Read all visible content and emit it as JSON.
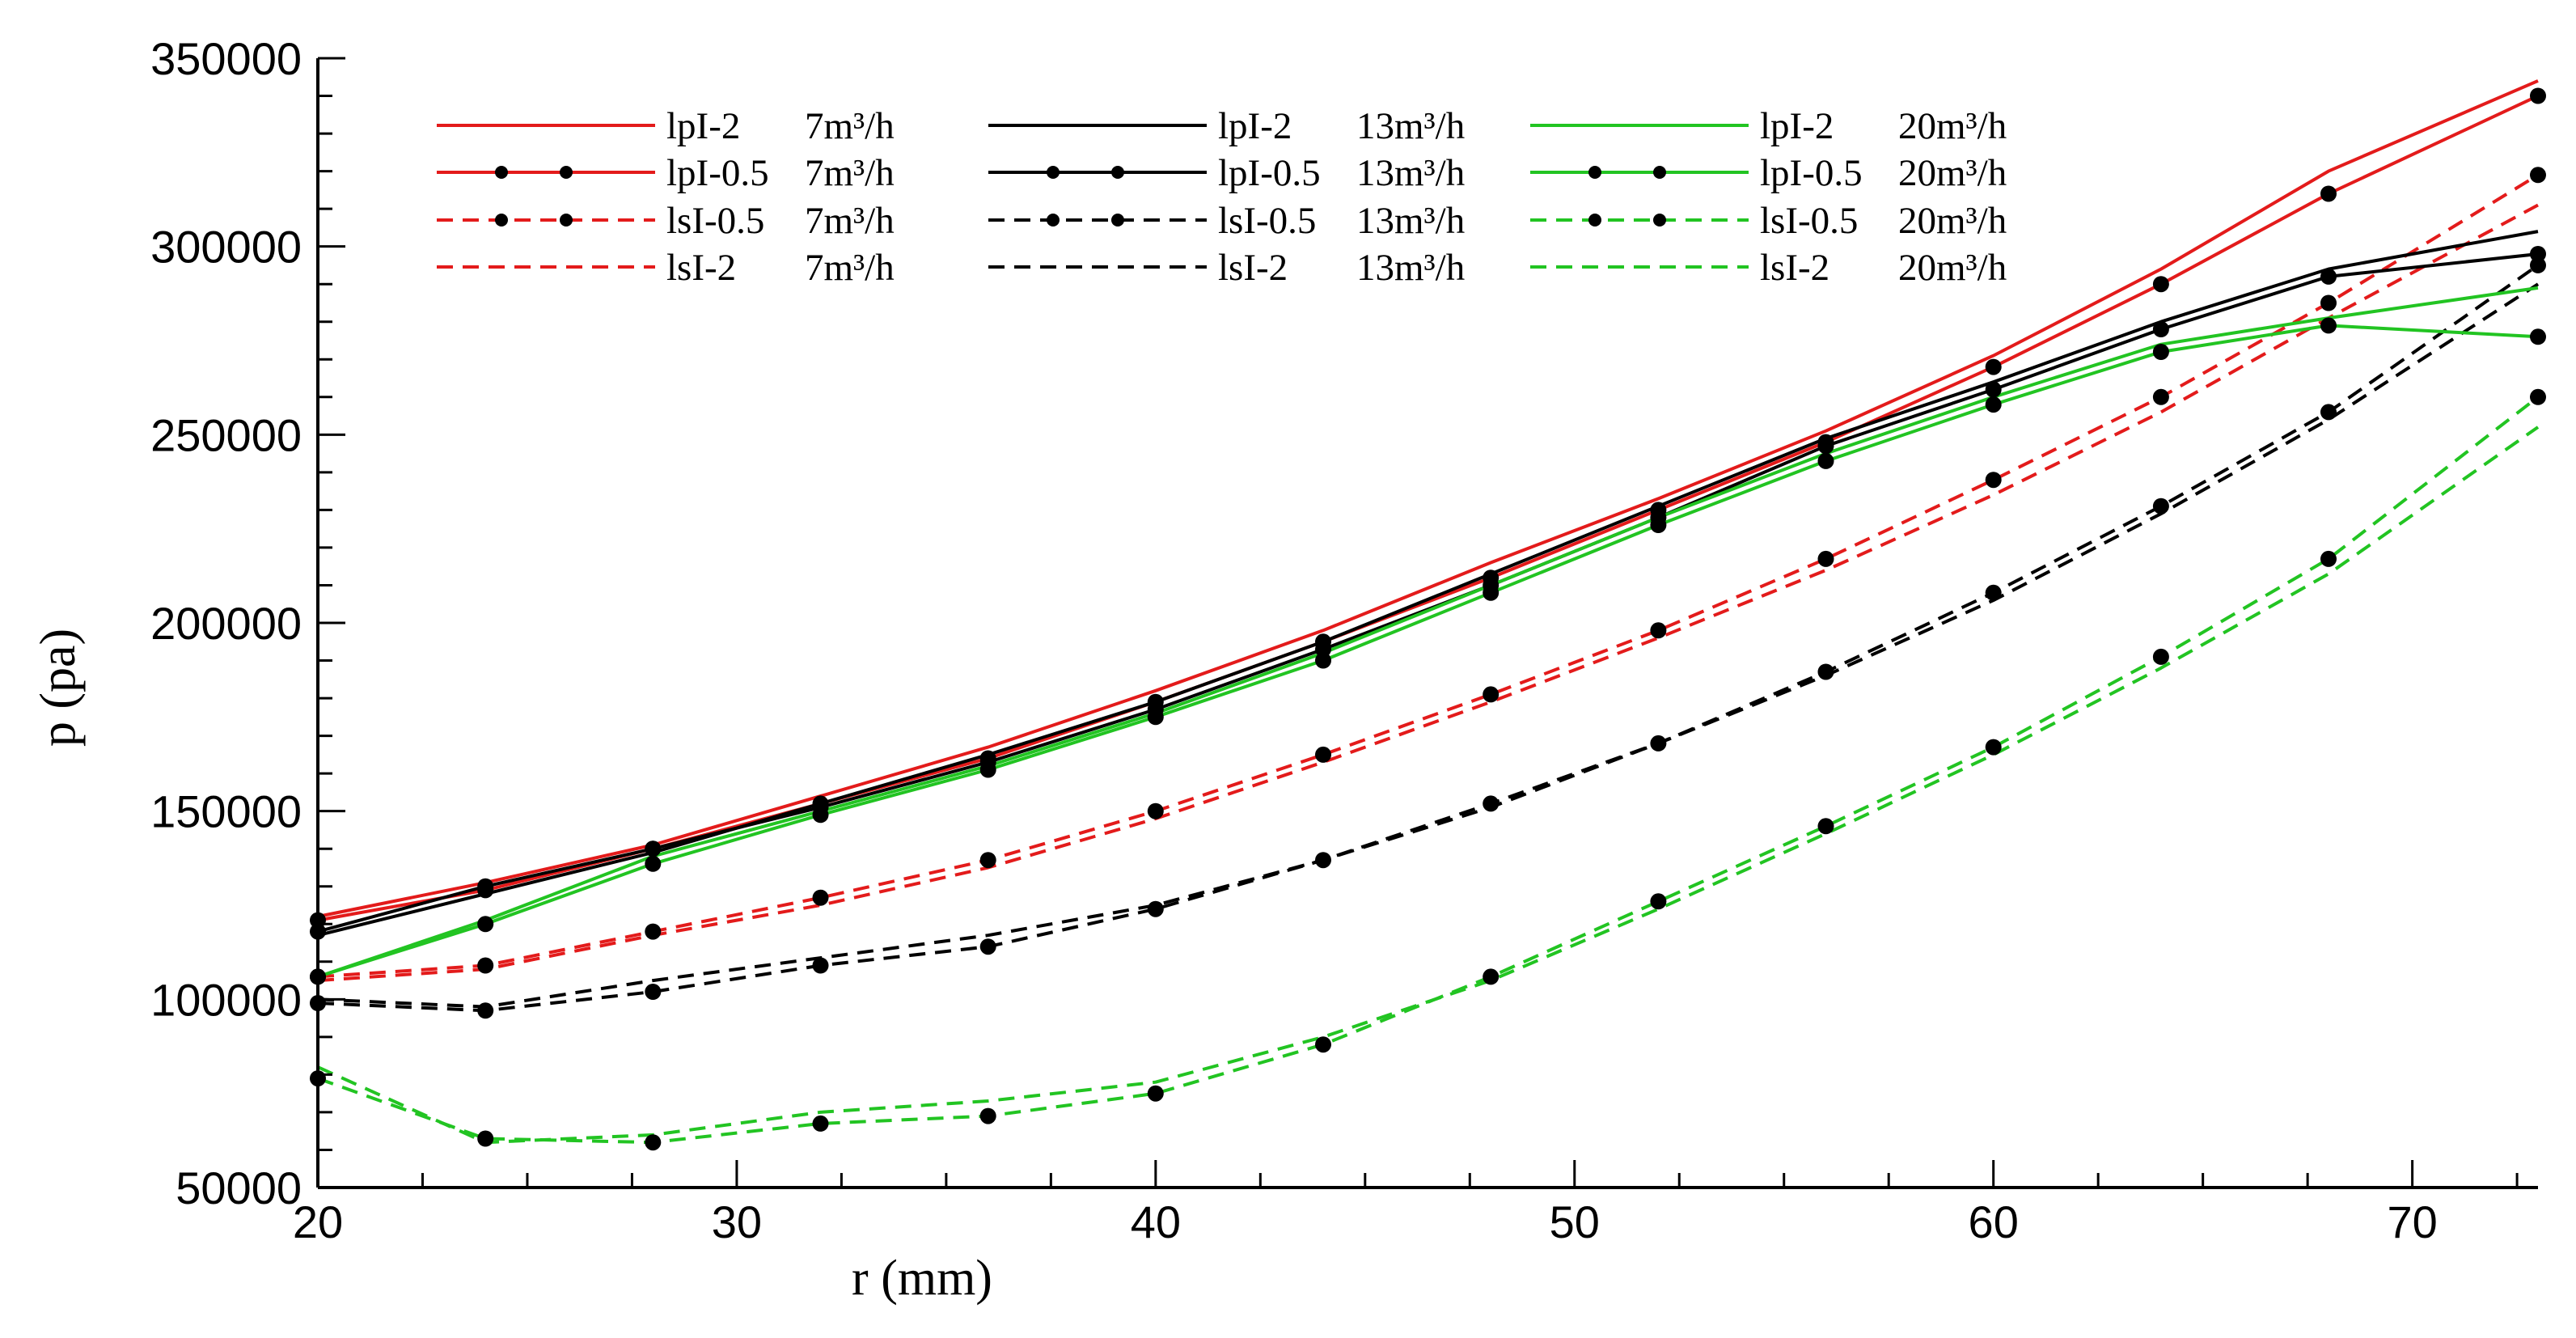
{
  "chart_data": {
    "type": "line",
    "title": "",
    "xlabel": "r (mm)",
    "ylabel": "p (pa)",
    "xlim": [
      20,
      73
    ],
    "ylim": [
      50000,
      350000
    ],
    "x_ticks": [
      20,
      30,
      40,
      50,
      60,
      70
    ],
    "y_ticks": [
      50000,
      100000,
      150000,
      200000,
      250000,
      300000,
      350000
    ],
    "grid": false,
    "legend_position": "top",
    "colors": {
      "red": "#e31b1b",
      "black": "#000000",
      "green": "#22c422"
    },
    "x": [
      20,
      24,
      28,
      32,
      36,
      40,
      44,
      48,
      52,
      56,
      60,
      64,
      68,
      73
    ],
    "series": [
      {
        "name": "lpI-2 7m³/h",
        "label_main": "lpI-2",
        "label_flow": "7m³/h",
        "color": "red",
        "dash": false,
        "markers": false,
        "values": [
          122000,
          131000,
          141000,
          154000,
          167000,
          182000,
          198000,
          216000,
          233000,
          251000,
          271000,
          294000,
          320000,
          344000
        ]
      },
      {
        "name": "lpI-0.5 7m³/h",
        "label_main": "lpI-0.5",
        "label_flow": "7m³/h",
        "color": "red",
        "dash": false,
        "markers": true,
        "values": [
          121000,
          129000,
          140000,
          152000,
          164000,
          179000,
          195000,
          212000,
          230000,
          248000,
          268000,
          290000,
          314000,
          340000
        ]
      },
      {
        "name": "lsI-0.5 7m³/h",
        "label_main": "lsI-0.5",
        "label_flow": "7m³/h",
        "color": "red",
        "dash": true,
        "markers": true,
        "values": [
          106000,
          109000,
          118000,
          127000,
          137000,
          150000,
          165000,
          181000,
          198000,
          217000,
          238000,
          260000,
          285000,
          319000
        ]
      },
      {
        "name": "lsI-2 7m³/h",
        "label_main": "lsI-2",
        "label_flow": "7m³/h",
        "color": "red",
        "dash": true,
        "markers": false,
        "values": [
          105000,
          108000,
          117000,
          125000,
          135000,
          148000,
          163000,
          179000,
          196000,
          214000,
          234000,
          256000,
          281000,
          311000
        ]
      },
      {
        "name": "lpI-2 13m³/h",
        "label_main": "lpI-2",
        "label_flow": "13m³/h",
        "color": "black",
        "dash": false,
        "markers": false,
        "values": [
          117000,
          128000,
          139000,
          152000,
          165000,
          179000,
          195000,
          213000,
          231000,
          249000,
          264000,
          280000,
          294000,
          304000
        ]
      },
      {
        "name": "lpI-0.5 13m³/h",
        "label_main": "lpI-0.5",
        "label_flow": "13m³/h",
        "color": "black",
        "dash": false,
        "markers": true,
        "values": [
          118000,
          130000,
          140000,
          151000,
          163000,
          177000,
          193000,
          210000,
          228000,
          247000,
          262000,
          278000,
          292000,
          298000
        ]
      },
      {
        "name": "lsI-0.5 13m³/h",
        "label_main": "lsI-0.5",
        "label_flow": "13m³/h",
        "color": "black",
        "dash": true,
        "markers": true,
        "values": [
          99000,
          97000,
          102000,
          109000,
          114000,
          124000,
          137000,
          152000,
          168000,
          187000,
          208000,
          231000,
          256000,
          295000
        ]
      },
      {
        "name": "lsI-2 13m³/h",
        "label_main": "lsI-2",
        "label_flow": "13m³/h",
        "color": "black",
        "dash": true,
        "markers": false,
        "values": [
          100000,
          98000,
          105000,
          111000,
          117000,
          125000,
          137000,
          151000,
          168000,
          186000,
          206000,
          229000,
          254000,
          290000
        ]
      },
      {
        "name": "lpI-2 20m³/h",
        "label_main": "lpI-2",
        "label_flow": "20m³/h",
        "color": "green",
        "dash": false,
        "markers": false,
        "values": [
          106000,
          121000,
          138000,
          150000,
          162000,
          176000,
          192000,
          210000,
          228000,
          245000,
          260000,
          274000,
          281000,
          289000
        ]
      },
      {
        "name": "lpI-0.5 20m³/h",
        "label_main": "lpI-0.5",
        "label_flow": "20m³/h",
        "color": "green",
        "dash": false,
        "markers": true,
        "values": [
          106000,
          120000,
          136000,
          149000,
          161000,
          175000,
          190000,
          208000,
          226000,
          243000,
          258000,
          272000,
          279000,
          276000
        ]
      },
      {
        "name": "lsI-0.5 20m³/h",
        "label_main": "lsI-0.5",
        "label_flow": "20m³/h",
        "color": "green",
        "dash": true,
        "markers": true,
        "values": [
          79000,
          63000,
          62000,
          67000,
          69000,
          75000,
          88000,
          106000,
          126000,
          146000,
          167000,
          191000,
          217000,
          260000
        ]
      },
      {
        "name": "lsI-2 20m³/h",
        "label_main": "lsI-2",
        "label_flow": "20m³/h",
        "color": "green",
        "dash": true,
        "markers": false,
        "values": [
          82000,
          62000,
          64000,
          70000,
          73000,
          78000,
          90000,
          105000,
          124000,
          144000,
          165000,
          188000,
          213000,
          252000
        ]
      }
    ]
  }
}
